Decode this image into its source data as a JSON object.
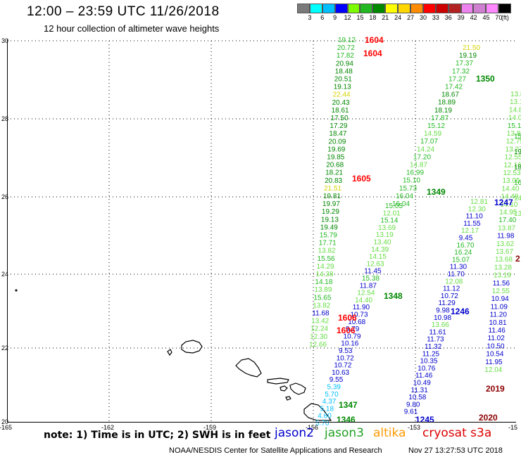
{
  "header": {
    "title": "12:00 – 23:59 UTC 11/26/2018",
    "subtitle": "12 hour collection of altimeter wave heights"
  },
  "color_scale": {
    "labels": [
      "3",
      "6",
      "9",
      "12",
      "15",
      "18",
      "21",
      "24",
      "27",
      "30",
      "33",
      "36",
      "39",
      "42",
      "45",
      "70",
      "(ft)"
    ],
    "colors": [
      "#7a7a7a",
      "#00ffff",
      "#00bfff",
      "#0000ff",
      "#7cfc00",
      "#22b822",
      "#008800",
      "#ffff00",
      "#ffd700",
      "#ff8c00",
      "#ff0000",
      "#cc0000",
      "#b22222",
      "#ee82ee",
      "#d080d0",
      "#ff88ff",
      "#000000"
    ]
  },
  "axes": {
    "lat_ticks": [
      "30",
      "28",
      "26",
      "24",
      "22",
      "20"
    ],
    "lon_ticks": [
      "-165",
      "-162",
      "-159",
      "-156",
      "-153",
      "-15"
    ]
  },
  "map_labels": [
    {
      "text": "1604",
      "color": "#ff0000"
    },
    {
      "text": "1604",
      "color": "#ff0000"
    },
    {
      "text": "1605",
      "color": "#ff0000"
    },
    {
      "text": "1606",
      "color": "#ff0000"
    },
    {
      "text": "1606",
      "color": "#ff0000"
    },
    {
      "text": "1350",
      "color": "#008800"
    },
    {
      "text": "1349",
      "color": "#008800"
    },
    {
      "text": "1348",
      "color": "#008800"
    },
    {
      "text": "1347",
      "color": "#008800"
    },
    {
      "text": "1346",
      "color": "#008800"
    },
    {
      "text": "1247",
      "color": "#0000cc"
    },
    {
      "text": "1246",
      "color": "#0000cc"
    },
    {
      "text": "1245",
      "color": "#0000cc"
    },
    {
      "text": "2019",
      "color": "#8b0000"
    },
    {
      "text": "2020",
      "color": "#8b0000"
    },
    {
      "text": "2",
      "color": "#8b0000"
    }
  ],
  "tracks": {
    "track_1604": [
      {
        "v": "19.12",
        "c": "#22b822"
      },
      {
        "v": "20.72",
        "c": "#22b822"
      },
      {
        "v": "17.82",
        "c": "#22b822"
      },
      {
        "v": "20.94",
        "c": "#008800"
      },
      {
        "v": "18.48",
        "c": "#008800"
      },
      {
        "v": "20.51",
        "c": "#008800"
      },
      {
        "v": "19.13",
        "c": "#008800"
      },
      {
        "v": "22.44",
        "c": "#d4d400"
      },
      {
        "v": "20.43",
        "c": "#008800"
      },
      {
        "v": "18.61",
        "c": "#008800"
      },
      {
        "v": "17.50",
        "c": "#008800"
      },
      {
        "v": "17.29",
        "c": "#008800"
      },
      {
        "v": "18.47",
        "c": "#008800"
      },
      {
        "v": "20.09",
        "c": "#008800"
      },
      {
        "v": "19.69",
        "c": "#008800"
      },
      {
        "v": "19.85",
        "c": "#008800"
      },
      {
        "v": "20.68",
        "c": "#008800"
      },
      {
        "v": "18.21",
        "c": "#008800"
      },
      {
        "v": "20.83",
        "c": "#008800"
      },
      {
        "v": "21.51",
        "c": "#d4d400"
      },
      {
        "v": "19.81",
        "c": "#008800"
      },
      {
        "v": "19.97",
        "c": "#008800"
      },
      {
        "v": "19.29",
        "c": "#008800"
      },
      {
        "v": "19.13",
        "c": "#008800"
      },
      {
        "v": "19.49",
        "c": "#008800"
      },
      {
        "v": "15.79",
        "c": "#22b822"
      },
      {
        "v": "17.71",
        "c": "#22b822"
      },
      {
        "v": "13.82",
        "c": "#66dd44"
      },
      {
        "v": "15.56",
        "c": "#22b822"
      },
      {
        "v": "14.29",
        "c": "#66dd44"
      },
      {
        "v": "14.38",
        "c": "#66dd44"
      },
      {
        "v": "14.18",
        "c": "#22b822"
      },
      {
        "v": "13.89",
        "c": "#66dd44"
      },
      {
        "v": "15.65",
        "c": "#22b822"
      },
      {
        "v": "13.82",
        "c": "#66dd44"
      },
      {
        "v": "11.68",
        "c": "#0000cc"
      },
      {
        "v": "13.42",
        "c": "#66dd44"
      },
      {
        "v": "12.24",
        "c": "#66dd44"
      },
      {
        "v": "12.30",
        "c": "#66dd44"
      },
      {
        "v": "12.66",
        "c": "#66dd44"
      }
    ],
    "track_1350": [
      {
        "v": "21.50",
        "c": "#d4d400"
      },
      {
        "v": "19.19",
        "c": "#008800"
      },
      {
        "v": "17.37",
        "c": "#22b822"
      },
      {
        "v": "17.32",
        "c": "#22b822"
      },
      {
        "v": "17.27",
        "c": "#22b822"
      },
      {
        "v": "17.42",
        "c": "#22b822"
      },
      {
        "v": "18.67",
        "c": "#008800"
      },
      {
        "v": "18.89",
        "c": "#008800"
      },
      {
        "v": "18.19",
        "c": "#008800"
      },
      {
        "v": "17.87",
        "c": "#22b822"
      },
      {
        "v": "15.12",
        "c": "#22b822"
      },
      {
        "v": "14.59",
        "c": "#66dd44"
      },
      {
        "v": "17.07",
        "c": "#22b822"
      },
      {
        "v": "14.24",
        "c": "#66dd44"
      },
      {
        "v": "17.20",
        "c": "#22b822"
      },
      {
        "v": "14.87",
        "c": "#66dd44"
      },
      {
        "v": "16.99",
        "c": "#22b822"
      },
      {
        "v": "15.10",
        "c": "#22b822"
      },
      {
        "v": "15.73",
        "c": "#22b822"
      },
      {
        "v": "16.04",
        "c": "#22b822"
      },
      {
        "v": "16.04",
        "c": "#22b822"
      }
    ],
    "track_1349": [
      {
        "v": "15.05",
        "c": "#22b822"
      },
      {
        "v": "12.01",
        "c": "#66dd44"
      },
      {
        "v": "15.14",
        "c": "#22b822"
      },
      {
        "v": "13.69",
        "c": "#66dd44"
      },
      {
        "v": "13.19",
        "c": "#66dd44"
      },
      {
        "v": "13.40",
        "c": "#66dd44"
      },
      {
        "v": "14.39",
        "c": "#66dd44"
      },
      {
        "v": "14.15",
        "c": "#66dd44"
      },
      {
        "v": "12.63",
        "c": "#66dd44"
      },
      {
        "v": "11.45",
        "c": "#0000cc"
      },
      {
        "v": "15.38",
        "c": "#22b822"
      },
      {
        "v": "11.87",
        "c": "#0000cc"
      },
      {
        "v": "12.54",
        "c": "#66dd44"
      },
      {
        "v": "14.40",
        "c": "#66dd44"
      },
      {
        "v": "11.90",
        "c": "#0000cc"
      },
      {
        "v": "10.73",
        "c": "#0000cc"
      },
      {
        "v": "10.68",
        "c": "#0000cc"
      },
      {
        "v": "9.79",
        "c": "#0000cc"
      },
      {
        "v": "10.79",
        "c": "#0000cc"
      },
      {
        "v": "10.16",
        "c": "#0000cc"
      },
      {
        "v": "9.53",
        "c": "#0000cc"
      },
      {
        "v": "10.72",
        "c": "#0000cc"
      },
      {
        "v": "10.72",
        "c": "#0000cc"
      },
      {
        "v": "10.63",
        "c": "#0000cc"
      },
      {
        "v": "9.55",
        "c": "#0000cc"
      },
      {
        "v": "5.39",
        "c": "#00bfff"
      },
      {
        "v": "5.70",
        "c": "#00bfff"
      },
      {
        "v": "4.37",
        "c": "#00bfff"
      },
      {
        "v": "5.18",
        "c": "#00bfff"
      },
      {
        "v": "4.60",
        "c": "#00bfff"
      },
      {
        "v": "5.70",
        "c": "#00bfff"
      }
    ],
    "track_1246": [
      {
        "v": "12.81",
        "c": "#66dd44"
      },
      {
        "v": "12.30",
        "c": "#66dd44"
      },
      {
        "v": "11.10",
        "c": "#0000cc"
      },
      {
        "v": "11.55",
        "c": "#0000cc"
      },
      {
        "v": "12.17",
        "c": "#66dd44"
      },
      {
        "v": "9.45",
        "c": "#0000cc"
      },
      {
        "v": "16.70",
        "c": "#22b822"
      },
      {
        "v": "16.24",
        "c": "#22b822"
      },
      {
        "v": "15.07",
        "c": "#22b822"
      },
      {
        "v": "11.30",
        "c": "#0000cc"
      },
      {
        "v": "11.70",
        "c": "#0000cc"
      },
      {
        "v": "12.08",
        "c": "#66dd44"
      },
      {
        "v": "11.12",
        "c": "#0000cc"
      },
      {
        "v": "10.72",
        "c": "#0000cc"
      },
      {
        "v": "11.29",
        "c": "#0000cc"
      },
      {
        "v": "9.98",
        "c": "#0000cc"
      },
      {
        "v": "10.98",
        "c": "#0000cc"
      },
      {
        "v": "13.66",
        "c": "#66dd44"
      },
      {
        "v": "11.61",
        "c": "#0000cc"
      },
      {
        "v": "11.73",
        "c": "#0000cc"
      },
      {
        "v": "11.32",
        "c": "#0000cc"
      },
      {
        "v": "11.25",
        "c": "#0000cc"
      },
      {
        "v": "10.35",
        "c": "#0000cc"
      },
      {
        "v": "10.76",
        "c": "#0000cc"
      },
      {
        "v": "11.46",
        "c": "#0000cc"
      },
      {
        "v": "10.49",
        "c": "#0000cc"
      },
      {
        "v": "11.31",
        "c": "#0000cc"
      },
      {
        "v": "10.58",
        "c": "#0000cc"
      },
      {
        "v": "9.80",
        "c": "#0000cc"
      },
      {
        "v": "9.61",
        "c": "#0000cc"
      }
    ],
    "track_1247": [
      {
        "v": "13.8",
        "c": "#66dd44"
      },
      {
        "v": "13.1",
        "c": "#66dd44"
      },
      {
        "v": "14.82",
        "c": "#66dd44"
      },
      {
        "v": "14.07",
        "c": "#66dd44"
      },
      {
        "v": "15.12",
        "c": "#22b822"
      },
      {
        "v": "13.82",
        "c": "#66dd44"
      },
      {
        "v": "12.75",
        "c": "#66dd44"
      },
      {
        "v": "13.27",
        "c": "#66dd44"
      },
      {
        "v": "12.55",
        "c": "#66dd44"
      },
      {
        "v": "12.16",
        "c": "#66dd44"
      },
      {
        "v": "12.53",
        "c": "#66dd44"
      },
      {
        "v": "13.05",
        "c": "#66dd44"
      },
      {
        "v": "14.40",
        "c": "#66dd44"
      },
      {
        "v": "14.49",
        "c": "#66dd44"
      },
      {
        "v": "14.10",
        "c": "#66dd44"
      },
      {
        "v": "14.95",
        "c": "#66dd44"
      },
      {
        "v": "17.40",
        "c": "#22b822"
      },
      {
        "v": "13.87",
        "c": "#66dd44"
      },
      {
        "v": "11.98",
        "c": "#0000cc"
      },
      {
        "v": "13.62",
        "c": "#66dd44"
      },
      {
        "v": "13.67",
        "c": "#66dd44"
      },
      {
        "v": "13.68",
        "c": "#66dd44"
      },
      {
        "v": "13.28",
        "c": "#66dd44"
      },
      {
        "v": "13.19",
        "c": "#66dd44"
      },
      {
        "v": "11.56",
        "c": "#0000cc"
      },
      {
        "v": "12.55",
        "c": "#66dd44"
      },
      {
        "v": "10.94",
        "c": "#0000cc"
      },
      {
        "v": "11.09",
        "c": "#0000cc"
      },
      {
        "v": "11.20",
        "c": "#0000cc"
      },
      {
        "v": "10.81",
        "c": "#0000cc"
      },
      {
        "v": "11.46",
        "c": "#0000cc"
      },
      {
        "v": "11.02",
        "c": "#0000cc"
      },
      {
        "v": "10.50",
        "c": "#0000cc"
      },
      {
        "v": "10.54",
        "c": "#0000cc"
      },
      {
        "v": "11.95",
        "c": "#0000cc"
      },
      {
        "v": "12.04",
        "c": "#66dd44"
      }
    ],
    "track_edge": [
      {
        "v": "15",
        "c": "#22b822"
      },
      {
        "v": "19.",
        "c": "#008800"
      },
      {
        "v": "18.",
        "c": "#008800"
      },
      {
        "v": "16",
        "c": "#22b822"
      },
      {
        "v": "14.",
        "c": "#66dd44"
      },
      {
        "v": "13.",
        "c": "#66dd44"
      }
    ]
  },
  "footer": {
    "note": "note: 1) Time is in UTC; 2) SWH is in feet",
    "legend": [
      {
        "label": "jason2",
        "color": "#0000cc"
      },
      {
        "label": "jason3",
        "color": "#22a022"
      },
      {
        "label": "altika",
        "color": "#ff9900"
      },
      {
        "label": "cryosat s3a",
        "color": "#dd0000"
      }
    ],
    "credit": "NOAA/NESDIS Center for Satellite Applications and Research",
    "timestamp": "Nov 27 13:27:53 UTC 2018"
  }
}
